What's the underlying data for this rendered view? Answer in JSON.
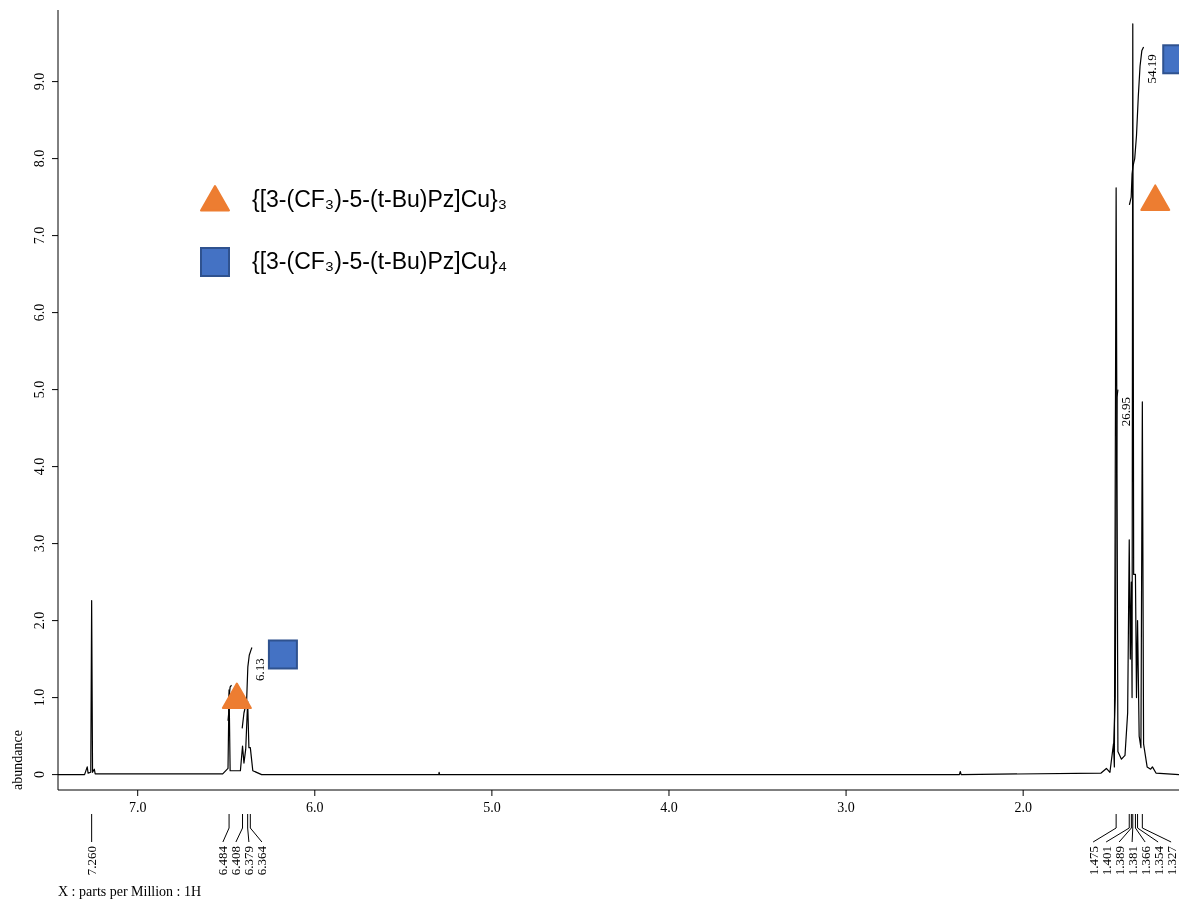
{
  "chart_data": {
    "type": "line",
    "xlabel": "X : parts per Million : 1H",
    "ylabel": "abundance",
    "xlim": [
      7.45,
      1.12
    ],
    "ylim": [
      -0.2,
      9.93
    ],
    "xticks": [
      {
        "value": 7,
        "label": "7.0"
      },
      {
        "value": 6,
        "label": "6.0"
      },
      {
        "value": 5,
        "label": "5.0"
      },
      {
        "value": 4,
        "label": "4.0"
      },
      {
        "value": 3,
        "label": "3.0"
      },
      {
        "value": 2,
        "label": "2.0"
      }
    ],
    "yticks": [
      0,
      {
        "value": 1,
        "label": "1.0"
      },
      {
        "value": 2,
        "label": "2.0"
      },
      {
        "value": 3,
        "label": "3.0"
      },
      {
        "value": 4,
        "label": "4.0"
      },
      {
        "value": 5,
        "label": "5.0"
      },
      {
        "value": 6,
        "label": "6.0"
      },
      {
        "value": 7,
        "label": "7.0"
      },
      {
        "value": 8,
        "label": "8.0"
      },
      {
        "value": 9,
        "label": "9.0"
      }
    ],
    "grid": false,
    "legend": "top left",
    "series": [
      {
        "color": "#000000",
        "x": [
          7.45,
          7.3,
          7.285,
          7.28,
          7.265,
          7.26,
          7.255,
          7.245,
          7.24,
          6.52,
          6.49,
          6.484,
          6.478,
          6.42,
          6.408,
          6.4,
          6.39,
          6.379,
          6.372,
          6.364,
          6.358,
          6.35,
          6.3,
          5.3,
          5.298,
          5.295,
          2.36,
          2.355,
          2.35,
          1.56,
          1.53,
          1.51,
          1.49,
          1.485,
          1.475,
          1.465,
          1.445,
          1.425,
          1.41,
          1.401,
          1.395,
          1.389,
          1.385,
          1.381,
          1.376,
          1.366,
          1.36,
          1.354,
          1.345,
          1.335,
          1.327,
          1.32,
          1.3,
          1.28,
          1.27,
          1.25,
          1.12
        ],
        "values": [
          0,
          0,
          0.1,
          0.02,
          0.03,
          2.26,
          0.03,
          0.07,
          0.01,
          0.01,
          0.08,
          1.1,
          0.05,
          0.05,
          0.37,
          0.15,
          0.33,
          0.95,
          0.35,
          0.35,
          0.22,
          0.05,
          0,
          0,
          0.03,
          0,
          0,
          0.04,
          0,
          0.02,
          0.08,
          0.03,
          0.4,
          0.1,
          7.62,
          0.3,
          0.2,
          0.25,
          0.8,
          3.05,
          1.5,
          2.5,
          1.0,
          9.75,
          2.6,
          2.6,
          1.0,
          2.0,
          0.5,
          0.35,
          4.84,
          0.4,
          0.1,
          0.07,
          0.1,
          0.02,
          0
        ]
      },
      {
        "color": "#000000",
        "x": [
          6.49,
          6.486,
          6.482,
          6.478,
          6.47
        ],
        "values": [
          0.7,
          0.8,
          1.05,
          1.14,
          1.16
        ]
      },
      {
        "color": "#000000",
        "x": [
          6.41,
          6.4,
          6.385,
          6.378,
          6.37,
          6.36,
          6.355
        ],
        "values": [
          0.6,
          0.8,
          0.95,
          1.4,
          1.55,
          1.62,
          1.65
        ]
      },
      {
        "color": "#000000",
        "x": [
          1.49,
          1.48,
          1.475,
          1.47,
          1.465
        ],
        "values": [
          0.3,
          1.0,
          3.5,
          4.9,
          5.0
        ]
      },
      {
        "color": "#000000",
        "x": [
          1.4,
          1.39,
          1.385,
          1.38,
          1.375,
          1.37,
          1.36,
          1.35,
          1.34,
          1.33,
          1.32
        ],
        "values": [
          7.4,
          7.5,
          7.8,
          7.9,
          7.95,
          8.0,
          8.3,
          8.8,
          9.2,
          9.4,
          9.45
        ]
      },
      {
        "type": "scatter",
        "name": "{[3-(CF₃)-5-(t-Bu)Pz]Cu}₃",
        "color": "#ed7d31",
        "marker": "triangle",
        "x": [
          6.44,
          1.254
        ],
        "values": [
          1.0,
          7.47
        ]
      },
      {
        "type": "scatter",
        "name": "{[3-(CF₃)-5-(t-Bu)Pz]Cu}₄",
        "color": "#4472c4",
        "marker": "square",
        "x": [
          6.18,
          1.13
        ],
        "values": [
          1.56,
          9.29
        ]
      }
    ],
    "annotations": [
      "6.13",
      "26.95",
      "54.19",
      {
        "text": "7.260",
        "x": 7.26
      },
      {
        "text": "6.484",
        "x": 6.484
      },
      {
        "text": "6.408",
        "x": 6.408
      },
      {
        "text": "6.379",
        "x": 6.379
      },
      {
        "text": "6.364",
        "x": 6.364
      },
      {
        "text": "1.475",
        "x": 1.475
      },
      {
        "text": "1.401",
        "x": 1.401
      },
      {
        "text": "1.389",
        "x": 1.389
      },
      {
        "text": "1.381",
        "x": 1.381
      },
      {
        "text": "1.366",
        "x": 1.366
      },
      {
        "text": "1.354",
        "x": 1.354
      },
      {
        "text": "1.327",
        "x": 1.327
      }
    ]
  }
}
